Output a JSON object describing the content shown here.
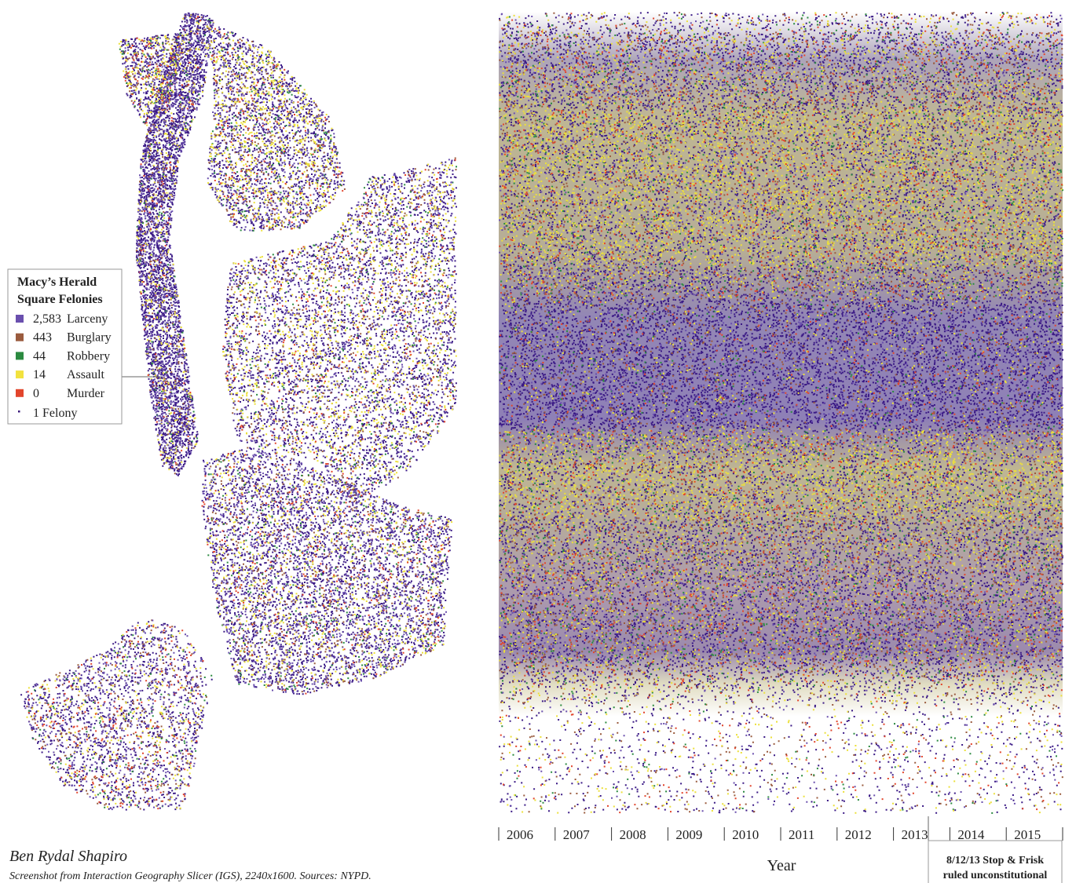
{
  "map": {
    "legend": {
      "title_lines": [
        "Macy’s Herald",
        "Square Felonies"
      ],
      "items": [
        {
          "count": "2,583",
          "label": "Larceny",
          "color": "#6a4fae"
        },
        {
          "count": "443",
          "label": "Burglary",
          "color": "#9a5b3e"
        },
        {
          "count": "44",
          "label": "Robbery",
          "color": "#2b8a40"
        },
        {
          "count": "14",
          "label": "Assault",
          "color": "#f2e23e"
        },
        {
          "count": "0",
          "label": "Murder",
          "color": "#e2452c"
        }
      ],
      "unit": "1 Felony"
    }
  },
  "timeline": {
    "years": [
      "2006",
      "2007",
      "2008",
      "2009",
      "2010",
      "2011",
      "2012",
      "2013",
      "2014",
      "2015"
    ],
    "axis_label": "Year",
    "annotation_lines": [
      "8/12/13 Stop & Frisk",
      "ruled unconstitutional"
    ]
  },
  "credit": {
    "author": "Ben Rydal Shapiro",
    "caption": "Screenshot from Interaction Geography Slicer (IGS), 2240x1600. Sources: NYPD."
  }
}
